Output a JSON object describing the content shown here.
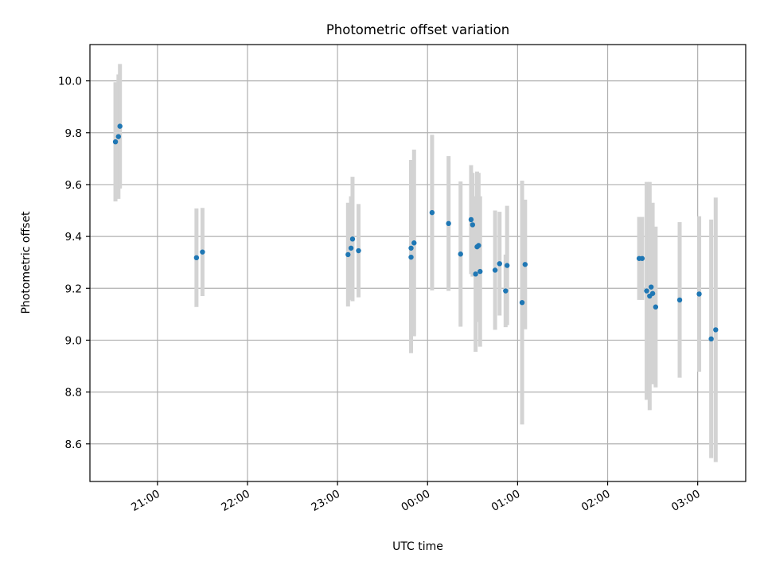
{
  "chart_data": {
    "type": "scatter",
    "title": "Photometric offset variation",
    "xlabel": "UTC time",
    "ylabel": "Photometric offset",
    "x_axis_type": "time",
    "xlim": [
      "20:15",
      "03:32"
    ],
    "ylim": [
      8.455,
      10.14
    ],
    "x_ticks": [
      "21:00",
      "22:00",
      "23:00",
      "00:00",
      "01:00",
      "02:00",
      "03:00"
    ],
    "y_ticks": [
      8.6,
      8.8,
      9.0,
      9.2,
      9.4,
      9.6,
      9.8,
      10.0
    ],
    "grid": true,
    "marker_color": "#1f77b4",
    "errorbar_color": "#d3d3d3",
    "points": [
      {
        "t": "20:32",
        "y": 9.765,
        "err": 0.23
      },
      {
        "t": "20:34",
        "y": 9.785,
        "err": 0.24
      },
      {
        "t": "20:35",
        "y": 9.825,
        "err": 0.24
      },
      {
        "t": "21:26",
        "y": 9.318,
        "err": 0.19
      },
      {
        "t": "21:30",
        "y": 9.34,
        "err": 0.17
      },
      {
        "t": "23:07",
        "y": 9.33,
        "err": 0.2
      },
      {
        "t": "23:09",
        "y": 9.355,
        "err": 0.2
      },
      {
        "t": "23:10",
        "y": 9.39,
        "err": 0.24
      },
      {
        "t": "23:14",
        "y": 9.345,
        "err": 0.18
      },
      {
        "t": "23:49",
        "y": 9.355,
        "err": 0.34
      },
      {
        "t": "23:49",
        "y": 9.32,
        "err": 0.37
      },
      {
        "t": "23:51",
        "y": 9.375,
        "err": 0.36
      },
      {
        "t": "00:03",
        "y": 9.492,
        "err": 0.3
      },
      {
        "t": "00:14",
        "y": 9.45,
        "err": 0.26
      },
      {
        "t": "00:22",
        "y": 9.332,
        "err": 0.28
      },
      {
        "t": "00:29",
        "y": 9.465,
        "err": 0.21
      },
      {
        "t": "00:30",
        "y": 9.445,
        "err": 0.2
      },
      {
        "t": "00:32",
        "y": 9.255,
        "err": 0.3
      },
      {
        "t": "00:33",
        "y": 9.36,
        "err": 0.29
      },
      {
        "t": "00:34",
        "y": 9.365,
        "err": 0.28
      },
      {
        "t": "00:35",
        "y": 9.265,
        "err": 0.29
      },
      {
        "t": "00:45",
        "y": 9.27,
        "err": 0.23
      },
      {
        "t": "00:48",
        "y": 9.295,
        "err": 0.2
      },
      {
        "t": "00:52",
        "y": 9.19,
        "err": 0.14
      },
      {
        "t": "00:53",
        "y": 9.288,
        "err": 0.23
      },
      {
        "t": "01:03",
        "y": 9.145,
        "err": 0.47
      },
      {
        "t": "01:05",
        "y": 9.292,
        "err": 0.25
      },
      {
        "t": "02:21",
        "y": 9.315,
        "err": 0.16
      },
      {
        "t": "02:23",
        "y": 9.315,
        "err": 0.16
      },
      {
        "t": "02:26",
        "y": 9.19,
        "err": 0.42
      },
      {
        "t": "02:28",
        "y": 9.17,
        "err": 0.44
      },
      {
        "t": "02:29",
        "y": 9.205,
        "err": 0.32
      },
      {
        "t": "02:30",
        "y": 9.18,
        "err": 0.35
      },
      {
        "t": "02:32",
        "y": 9.128,
        "err": 0.31
      },
      {
        "t": "02:48",
        "y": 9.155,
        "err": 0.3
      },
      {
        "t": "03:01",
        "y": 9.178,
        "err": 0.3
      },
      {
        "t": "03:09",
        "y": 9.005,
        "err": 0.46
      },
      {
        "t": "03:12",
        "y": 9.04,
        "err": 0.51
      }
    ]
  }
}
